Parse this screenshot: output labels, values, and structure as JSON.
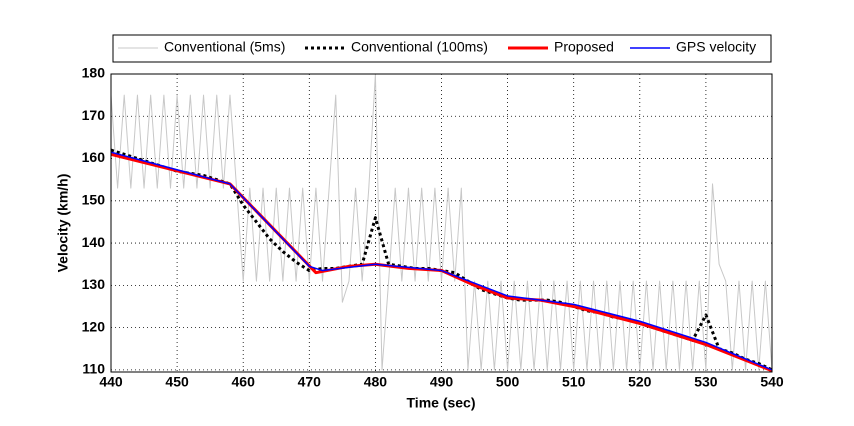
{
  "chart_data": {
    "type": "line",
    "xlabel": "Time (sec)",
    "ylabel": "Velocity (km/h)",
    "xlim": [
      440,
      540
    ],
    "ylim": [
      109.5,
      180
    ],
    "xticks": [
      440,
      450,
      460,
      470,
      480,
      490,
      500,
      510,
      520,
      530,
      540
    ],
    "yticks": [
      110,
      120,
      130,
      140,
      150,
      160,
      170,
      180
    ],
    "grid": true,
    "series": [
      {
        "name": "Conventional (5ms)",
        "color": "#c8c8c8",
        "line_style": "solid",
        "x": [
          440,
          441,
          442,
          443,
          444,
          445,
          446,
          447,
          448,
          449,
          450,
          451,
          452,
          453,
          454,
          455,
          456,
          457,
          458,
          459,
          460,
          461,
          462,
          463,
          464,
          465,
          466,
          467,
          468,
          469,
          470,
          471,
          472,
          473,
          474,
          475,
          476,
          477,
          478,
          479,
          480,
          481,
          482,
          483,
          484,
          485,
          486,
          487,
          488,
          489,
          490,
          491,
          492,
          493,
          494,
          495,
          496,
          497,
          498,
          499,
          500,
          501,
          502,
          503,
          504,
          505,
          506,
          507,
          508,
          509,
          510,
          511,
          512,
          513,
          514,
          515,
          516,
          517,
          518,
          519,
          520,
          521,
          522,
          523,
          524,
          525,
          526,
          527,
          528,
          529,
          530,
          531,
          532,
          533,
          534,
          535,
          536,
          537,
          538,
          539,
          540
        ],
        "values": [
          175,
          153,
          175,
          153,
          175,
          153,
          175,
          153,
          175,
          153,
          175,
          153,
          175,
          153,
          175,
          153,
          175,
          153,
          175,
          153,
          131,
          153,
          131,
          153,
          131,
          153,
          131,
          153,
          131,
          153,
          131,
          153,
          131,
          153,
          175,
          126,
          131,
          153,
          131,
          153,
          180,
          110,
          131,
          153,
          131,
          153,
          131,
          153,
          131,
          153,
          131,
          153,
          131,
          153,
          110,
          131,
          110,
          131,
          110,
          131,
          110,
          131,
          110,
          131,
          110,
          131,
          110,
          131,
          110,
          131,
          110,
          131,
          110,
          131,
          110,
          131,
          110,
          131,
          110,
          131,
          110,
          131,
          110,
          131,
          110,
          131,
          110,
          131,
          110,
          131,
          110,
          154,
          135,
          131,
          110,
          131,
          110,
          131,
          110,
          131,
          110
        ]
      },
      {
        "name": "Conventional (100ms)",
        "color": "#000000",
        "line_style": "dotted",
        "x": [
          440,
          442,
          444,
          446,
          448,
          450,
          452,
          454,
          456,
          458,
          460,
          462,
          464,
          466,
          468,
          470,
          472,
          474,
          476,
          478,
          480,
          482,
          484,
          486,
          488,
          490,
          492,
          494,
          496,
          498,
          500,
          502,
          504,
          506,
          508,
          510,
          512,
          514,
          516,
          518,
          520,
          522,
          524,
          526,
          528,
          530,
          532,
          534,
          536,
          538,
          540
        ],
        "values": [
          162,
          161,
          160,
          159,
          158,
          157,
          156.5,
          156,
          155,
          154,
          149,
          145,
          141,
          138,
          135.5,
          133.5,
          134,
          134,
          134.5,
          135,
          146,
          135,
          134.5,
          134,
          134,
          133.5,
          133,
          131,
          129,
          128,
          127,
          126.5,
          126.5,
          126.5,
          126,
          125,
          124,
          123.5,
          122.5,
          122,
          121,
          120,
          119,
          118,
          117,
          123,
          115,
          114,
          112.5,
          111.5,
          110
        ]
      },
      {
        "name": "Proposed",
        "color": "#ff0000",
        "line_style": "solid",
        "x": [
          440,
          458,
          471,
          476,
          480,
          485,
          490,
          495,
          500,
          505,
          510,
          520,
          530,
          540
        ],
        "values": [
          161,
          154,
          133,
          134.5,
          135,
          134,
          133.5,
          130,
          127,
          126.5,
          125,
          121,
          116,
          109.8
        ]
      },
      {
        "name": "GPS velocity",
        "color": "#0000ff",
        "line_style": "solid",
        "x": [
          440,
          458,
          470,
          472,
          480,
          490,
          495,
          500,
          505,
          510,
          520,
          530,
          540
        ],
        "values": [
          161.5,
          154,
          134.5,
          133.5,
          135,
          133.5,
          130.5,
          127.5,
          126.5,
          125.5,
          121.5,
          116.5,
          110
        ]
      }
    ]
  }
}
